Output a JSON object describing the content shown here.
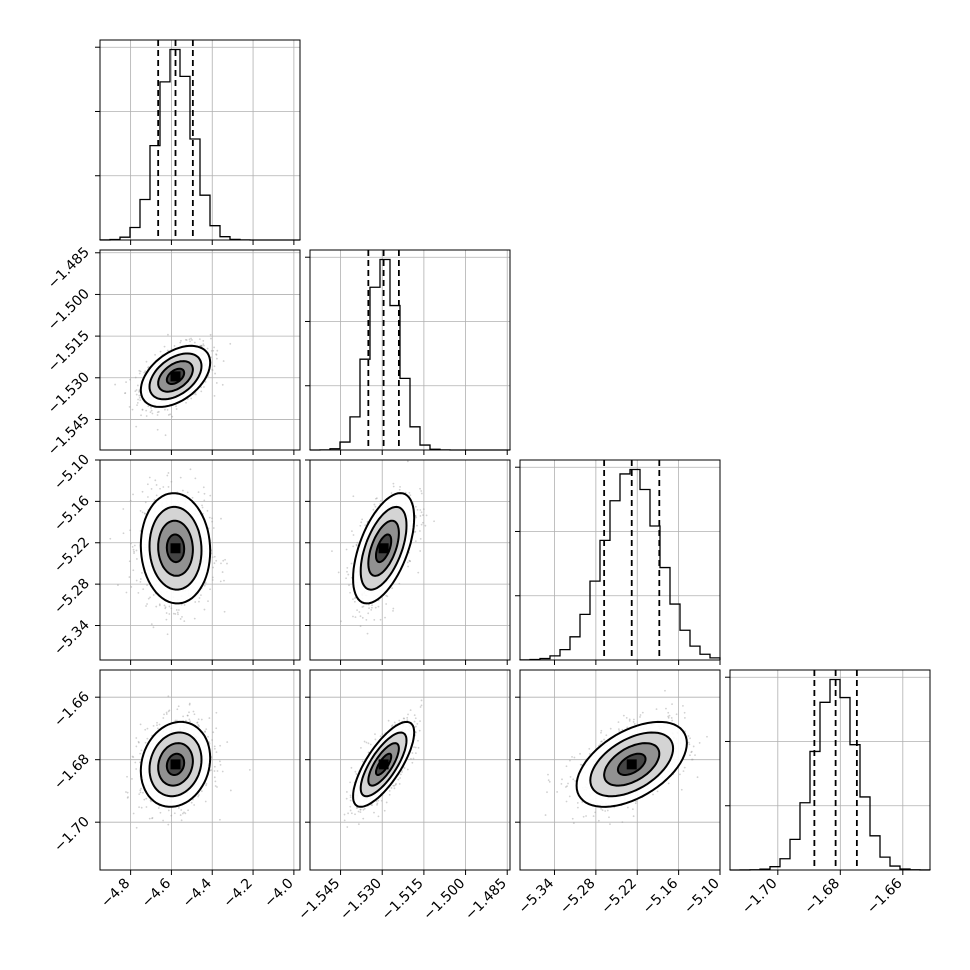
{
  "chart_data": {
    "type": "corner",
    "parameters": [
      {
        "range": [
          -4.95,
          -3.97
        ],
        "ticks": [
          -4.8,
          -4.6,
          -4.4,
          -4.2,
          -4.0
        ],
        "tick_labels": [
          "−4.8",
          "−4.6",
          "−4.4",
          "−4.2",
          "−4.0"
        ],
        "mean": -4.58,
        "sigma": 0.085,
        "quantiles": [
          -4.665,
          -4.58,
          -4.495
        ]
      },
      {
        "range": [
          -1.556,
          -1.484
        ],
        "ticks": [
          -1.545,
          -1.53,
          -1.515,
          -1.5,
          -1.485
        ],
        "tick_labels": [
          "−1.545",
          "−1.530",
          "−1.515",
          "−1.500",
          "−1.485"
        ],
        "mean": -1.5295,
        "sigma": 0.0055,
        "quantiles": [
          -1.535,
          -1.5295,
          -1.524
        ]
      },
      {
        "range": [
          -5.39,
          -5.1
        ],
        "ticks": [
          -5.34,
          -5.28,
          -5.22,
          -5.16,
          -5.1
        ],
        "tick_labels": [
          "−5.34",
          "−5.28",
          "−5.22",
          "−5.16",
          "−5.10"
        ],
        "mean": -5.228,
        "sigma": 0.04,
        "quantiles": [
          -5.268,
          -5.228,
          -5.188
        ]
      },
      {
        "range": [
          -1.7153,
          -1.6513
        ],
        "ticks": [
          -1.7,
          -1.68,
          -1.66
        ],
        "tick_labels": [
          "−1.70",
          "−1.68",
          "−1.66"
        ],
        "mean": -1.6815,
        "sigma": 0.0068,
        "quantiles": [
          -1.6883,
          -1.6815,
          -1.6747
        ]
      }
    ],
    "correlations": {
      "1-0": 0.45,
      "2-0": -0.05,
      "2-1": 0.55,
      "3-0": 0.15,
      "3-1": 0.75,
      "3-2": 0.5
    },
    "contour_levels_sigma": [
      0.5,
      1.0,
      1.5,
      2.0
    ],
    "quantile_lines": [
      0.16,
      0.5,
      0.84
    ],
    "grid": true,
    "series_color": "#000000",
    "scatter_color": "#9a9a9a"
  }
}
